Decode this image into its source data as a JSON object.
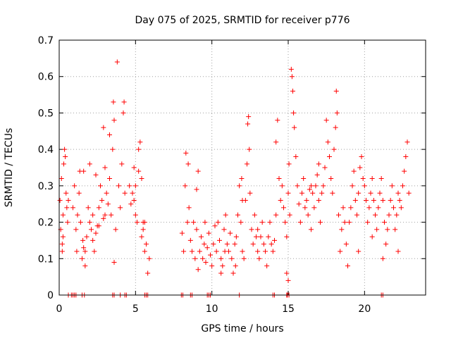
{
  "chart_data": {
    "type": "scatter",
    "title": "Day 075 of 2025, SRMTID for receiver p776",
    "xlabel": "GPS time / hours",
    "ylabel": "SRMTID / TECUs",
    "xlim": [
      0,
      24
    ],
    "ylim": [
      0,
      0.7
    ],
    "xticks": [
      0,
      5,
      10,
      15,
      20
    ],
    "yticks": [
      0,
      0.1,
      0.2,
      0.3,
      0.4,
      0.5,
      0.6,
      0.7
    ],
    "ytick_labels": [
      "0",
      "0.1",
      "0.2",
      "0.3",
      "0.4",
      "0.5",
      "0.6",
      "0.7"
    ],
    "grid": true,
    "marker": "+",
    "color": "#ff0000",
    "series": [
      {
        "name": "SRMTID",
        "points": [
          [
            0.05,
            0.26
          ],
          [
            0.1,
            0.18
          ],
          [
            0.15,
            0.32
          ],
          [
            0.2,
            0.14
          ],
          [
            0.25,
            0.22
          ],
          [
            0.3,
            0.36
          ],
          [
            0.35,
            0.4
          ],
          [
            0.4,
            0.38
          ],
          [
            0.45,
            0.28
          ],
          [
            0.5,
            0.24
          ],
          [
            0.55,
            0.2
          ],
          [
            0.6,
            0.26
          ],
          [
            0.2,
            0.12
          ],
          [
            0.25,
            0.16
          ],
          [
            0.9,
            0.24
          ],
          [
            1.0,
            0.3
          ],
          [
            1.1,
            0.18
          ],
          [
            1.15,
            0.12
          ],
          [
            1.2,
            0.22
          ],
          [
            1.3,
            0.28
          ],
          [
            1.35,
            0.34
          ],
          [
            1.4,
            0.2
          ],
          [
            1.5,
            0.1
          ],
          [
            1.55,
            0.15
          ],
          [
            1.6,
            0.13
          ],
          [
            1.7,
            0.08
          ],
          [
            1.8,
            0.16
          ],
          [
            1.9,
            0.24
          ],
          [
            2.0,
            0.2
          ],
          [
            2.1,
            0.18
          ],
          [
            2.2,
            0.22
          ],
          [
            2.3,
            0.12
          ],
          [
            2.4,
            0.17
          ],
          [
            2.5,
            0.19
          ],
          [
            2.6,
            0.24
          ],
          [
            2.7,
            0.3
          ],
          [
            2.8,
            0.26
          ],
          [
            2.9,
            0.21
          ],
          [
            3.0,
            0.35
          ],
          [
            3.1,
            0.28
          ],
          [
            3.2,
            0.25
          ],
          [
            3.3,
            0.32
          ],
          [
            3.4,
            0.22
          ],
          [
            3.5,
            0.4
          ],
          [
            3.55,
            0.53
          ],
          [
            3.6,
            0.48
          ],
          [
            3.7,
            0.18
          ],
          [
            3.8,
            0.64
          ],
          [
            3.9,
            0.3
          ],
          [
            4.0,
            0.24
          ],
          [
            4.2,
            0.5
          ],
          [
            4.25,
            0.53
          ],
          [
            4.3,
            0.28
          ],
          [
            4.1,
            0.36
          ],
          [
            2.9,
            0.46
          ],
          [
            3.3,
            0.44
          ],
          [
            3.6,
            0.09
          ],
          [
            1.6,
            0.34
          ],
          [
            2.4,
            0.33
          ],
          [
            2.0,
            0.36
          ],
          [
            1.7,
            0.12
          ],
          [
            2.2,
            0.15
          ],
          [
            2.6,
            0.19
          ],
          [
            3.0,
            0.22
          ],
          [
            4.6,
            0.3
          ],
          [
            4.7,
            0.25
          ],
          [
            4.8,
            0.28
          ],
          [
            4.9,
            0.35
          ],
          [
            5.0,
            0.22
          ],
          [
            5.1,
            0.2
          ],
          [
            5.2,
            0.4
          ],
          [
            5.3,
            0.42
          ],
          [
            5.4,
            0.32
          ],
          [
            5.5,
            0.2
          ],
          [
            5.6,
            0.12
          ],
          [
            5.7,
            0.14
          ],
          [
            5.8,
            0.06
          ],
          [
            5.9,
            0.1
          ],
          [
            5.0,
            0.3
          ],
          [
            4.9,
            0.26
          ],
          [
            5.2,
            0.34
          ],
          [
            5.5,
            0.18
          ],
          [
            5.4,
            0.16
          ],
          [
            5.6,
            0.2
          ],
          [
            8.05,
            0.17
          ],
          [
            8.15,
            0.12
          ],
          [
            8.25,
            0.3
          ],
          [
            8.3,
            0.39
          ],
          [
            8.4,
            0.2
          ],
          [
            8.5,
            0.24
          ],
          [
            8.6,
            0.15
          ],
          [
            8.7,
            0.12
          ],
          [
            8.8,
            0.2
          ],
          [
            8.9,
            0.1
          ],
          [
            9.0,
            0.18
          ],
          [
            9.1,
            0.07
          ],
          [
            9.2,
            0.12
          ],
          [
            9.3,
            0.16
          ],
          [
            9.4,
            0.1
          ],
          [
            9.5,
            0.14
          ],
          [
            9.6,
            0.09
          ],
          [
            9.7,
            0.13
          ],
          [
            9.8,
            0.17
          ],
          [
            9.9,
            0.11
          ],
          [
            10.0,
            0.08
          ],
          [
            10.1,
            0.14
          ],
          [
            10.2,
            0.19
          ],
          [
            10.3,
            0.12
          ],
          [
            10.4,
            0.2
          ],
          [
            10.5,
            0.15
          ],
          [
            10.6,
            0.1
          ],
          [
            10.7,
            0.08
          ],
          [
            10.8,
            0.18
          ],
          [
            10.9,
            0.22
          ],
          [
            11.0,
            0.14
          ],
          [
            11.1,
            0.12
          ],
          [
            11.2,
            0.17
          ],
          [
            11.3,
            0.1
          ],
          [
            11.4,
            0.06
          ],
          [
            11.5,
            0.14
          ],
          [
            11.6,
            0.16
          ],
          [
            11.7,
            0.22
          ],
          [
            11.8,
            0.3
          ],
          [
            11.9,
            0.2
          ],
          [
            12.0,
            0.12
          ],
          [
            12.1,
            0.1
          ],
          [
            12.2,
            0.26
          ],
          [
            12.3,
            0.36
          ],
          [
            12.35,
            0.47
          ],
          [
            12.4,
            0.49
          ],
          [
            12.45,
            0.4
          ],
          [
            12.5,
            0.28
          ],
          [
            12.6,
            0.18
          ],
          [
            12.7,
            0.14
          ],
          [
            12.8,
            0.22
          ],
          [
            12.9,
            0.16
          ],
          [
            13.0,
            0.12
          ],
          [
            13.1,
            0.1
          ],
          [
            13.2,
            0.16
          ],
          [
            13.3,
            0.2
          ],
          [
            13.4,
            0.14
          ],
          [
            13.5,
            0.12
          ],
          [
            13.6,
            0.08
          ],
          [
            13.7,
            0.16
          ],
          [
            13.8,
            0.2
          ],
          [
            13.9,
            0.14
          ],
          [
            14.0,
            0.12
          ],
          [
            14.1,
            0.15
          ],
          [
            14.2,
            0.22
          ],
          [
            9.1,
            0.34
          ],
          [
            9.0,
            0.29
          ],
          [
            8.45,
            0.36
          ],
          [
            11.95,
            0.32
          ],
          [
            12.0,
            0.26
          ],
          [
            13.0,
            0.18
          ],
          [
            10.6,
            0.06
          ],
          [
            9.55,
            0.2
          ],
          [
            10.85,
            0.12
          ],
          [
            11.55,
            0.08
          ],
          [
            14.2,
            0.42
          ],
          [
            14.3,
            0.48
          ],
          [
            14.4,
            0.32
          ],
          [
            14.5,
            0.26
          ],
          [
            14.6,
            0.3
          ],
          [
            14.7,
            0.24
          ],
          [
            14.8,
            0.2
          ],
          [
            14.9,
            0.16
          ],
          [
            15.0,
            0.28
          ],
          [
            15.05,
            0.36
          ],
          [
            15.1,
            0.22
          ],
          [
            15.2,
            0.62
          ],
          [
            15.25,
            0.6
          ],
          [
            15.3,
            0.56
          ],
          [
            15.35,
            0.5
          ],
          [
            15.4,
            0.46
          ],
          [
            15.5,
            0.38
          ],
          [
            15.6,
            0.3
          ],
          [
            15.7,
            0.25
          ],
          [
            15.8,
            0.2
          ],
          [
            15.9,
            0.28
          ],
          [
            16.0,
            0.32
          ],
          [
            16.1,
            0.24
          ],
          [
            16.2,
            0.26
          ],
          [
            16.3,
            0.22
          ],
          [
            16.4,
            0.29
          ],
          [
            16.5,
            0.3
          ],
          [
            16.6,
            0.28
          ],
          [
            16.7,
            0.24
          ],
          [
            16.8,
            0.3
          ],
          [
            16.9,
            0.33
          ],
          [
            17.0,
            0.26
          ],
          [
            17.1,
            0.2
          ],
          [
            17.2,
            0.28
          ],
          [
            17.3,
            0.3
          ],
          [
            17.4,
            0.35
          ],
          [
            17.5,
            0.48
          ],
          [
            17.6,
            0.42
          ],
          [
            17.7,
            0.38
          ],
          [
            17.8,
            0.32
          ],
          [
            17.9,
            0.28
          ],
          [
            18.0,
            0.4
          ],
          [
            18.1,
            0.46
          ],
          [
            18.15,
            0.56
          ],
          [
            18.2,
            0.5
          ],
          [
            18.3,
            0.22
          ],
          [
            18.4,
            0.12
          ],
          [
            18.5,
            0.18
          ],
          [
            18.6,
            0.24
          ],
          [
            18.7,
            0.2
          ],
          [
            18.8,
            0.14
          ],
          [
            18.9,
            0.08
          ],
          [
            19.0,
            0.2
          ],
          [
            19.1,
            0.24
          ],
          [
            19.2,
            0.3
          ],
          [
            19.3,
            0.34
          ],
          [
            19.4,
            0.26
          ],
          [
            19.5,
            0.22
          ],
          [
            19.6,
            0.28
          ],
          [
            19.7,
            0.35
          ],
          [
            19.8,
            0.38
          ],
          [
            19.9,
            0.32
          ],
          [
            20.0,
            0.3
          ],
          [
            20.1,
            0.26
          ],
          [
            20.2,
            0.2
          ],
          [
            20.3,
            0.24
          ],
          [
            20.4,
            0.28
          ],
          [
            20.5,
            0.32
          ],
          [
            20.6,
            0.26
          ],
          [
            20.7,
            0.22
          ],
          [
            20.8,
            0.18
          ],
          [
            20.9,
            0.24
          ],
          [
            21.0,
            0.28
          ],
          [
            21.1,
            0.32
          ],
          [
            21.2,
            0.26
          ],
          [
            21.3,
            0.2
          ],
          [
            21.4,
            0.14
          ],
          [
            21.5,
            0.18
          ],
          [
            21.6,
            0.22
          ],
          [
            21.7,
            0.26
          ],
          [
            21.8,
            0.3
          ],
          [
            21.9,
            0.24
          ],
          [
            22.0,
            0.18
          ],
          [
            22.1,
            0.22
          ],
          [
            22.2,
            0.28
          ],
          [
            22.3,
            0.26
          ],
          [
            22.4,
            0.24
          ],
          [
            22.5,
            0.3
          ],
          [
            22.6,
            0.34
          ],
          [
            22.7,
            0.38
          ],
          [
            22.8,
            0.42
          ],
          [
            22.9,
            0.28
          ],
          [
            14.9,
            0.06
          ],
          [
            15.0,
            0.04
          ],
          [
            16.5,
            0.18
          ],
          [
            17.0,
            0.36
          ],
          [
            19.6,
            0.12
          ],
          [
            20.5,
            0.16
          ],
          [
            21.2,
            0.1
          ],
          [
            22.2,
            0.12
          ]
        ]
      },
      {
        "name": "zero",
        "points": [
          [
            0.6,
            0
          ],
          [
            0.8,
            0
          ],
          [
            0.9,
            0
          ],
          [
            1.0,
            0
          ],
          [
            1.1,
            0
          ],
          [
            1.5,
            0
          ],
          [
            1.65,
            0
          ],
          [
            3.5,
            0
          ],
          [
            3.6,
            0
          ],
          [
            4.0,
            0
          ],
          [
            4.3,
            0
          ],
          [
            4.4,
            0
          ],
          [
            5.6,
            0
          ],
          [
            5.7,
            0
          ],
          [
            5.8,
            0
          ],
          [
            8.0,
            0
          ],
          [
            8.1,
            0
          ],
          [
            8.6,
            0
          ],
          [
            8.7,
            0
          ],
          [
            9.7,
            0
          ],
          [
            9.8,
            0
          ],
          [
            9.9,
            0
          ],
          [
            11.8,
            0
          ],
          [
            14.0,
            0
          ],
          [
            14.1,
            0
          ],
          [
            14.9,
            0
          ],
          [
            14.95,
            0
          ],
          [
            15.05,
            0
          ],
          [
            21.1,
            0
          ],
          [
            21.2,
            0
          ]
        ]
      }
    ]
  }
}
